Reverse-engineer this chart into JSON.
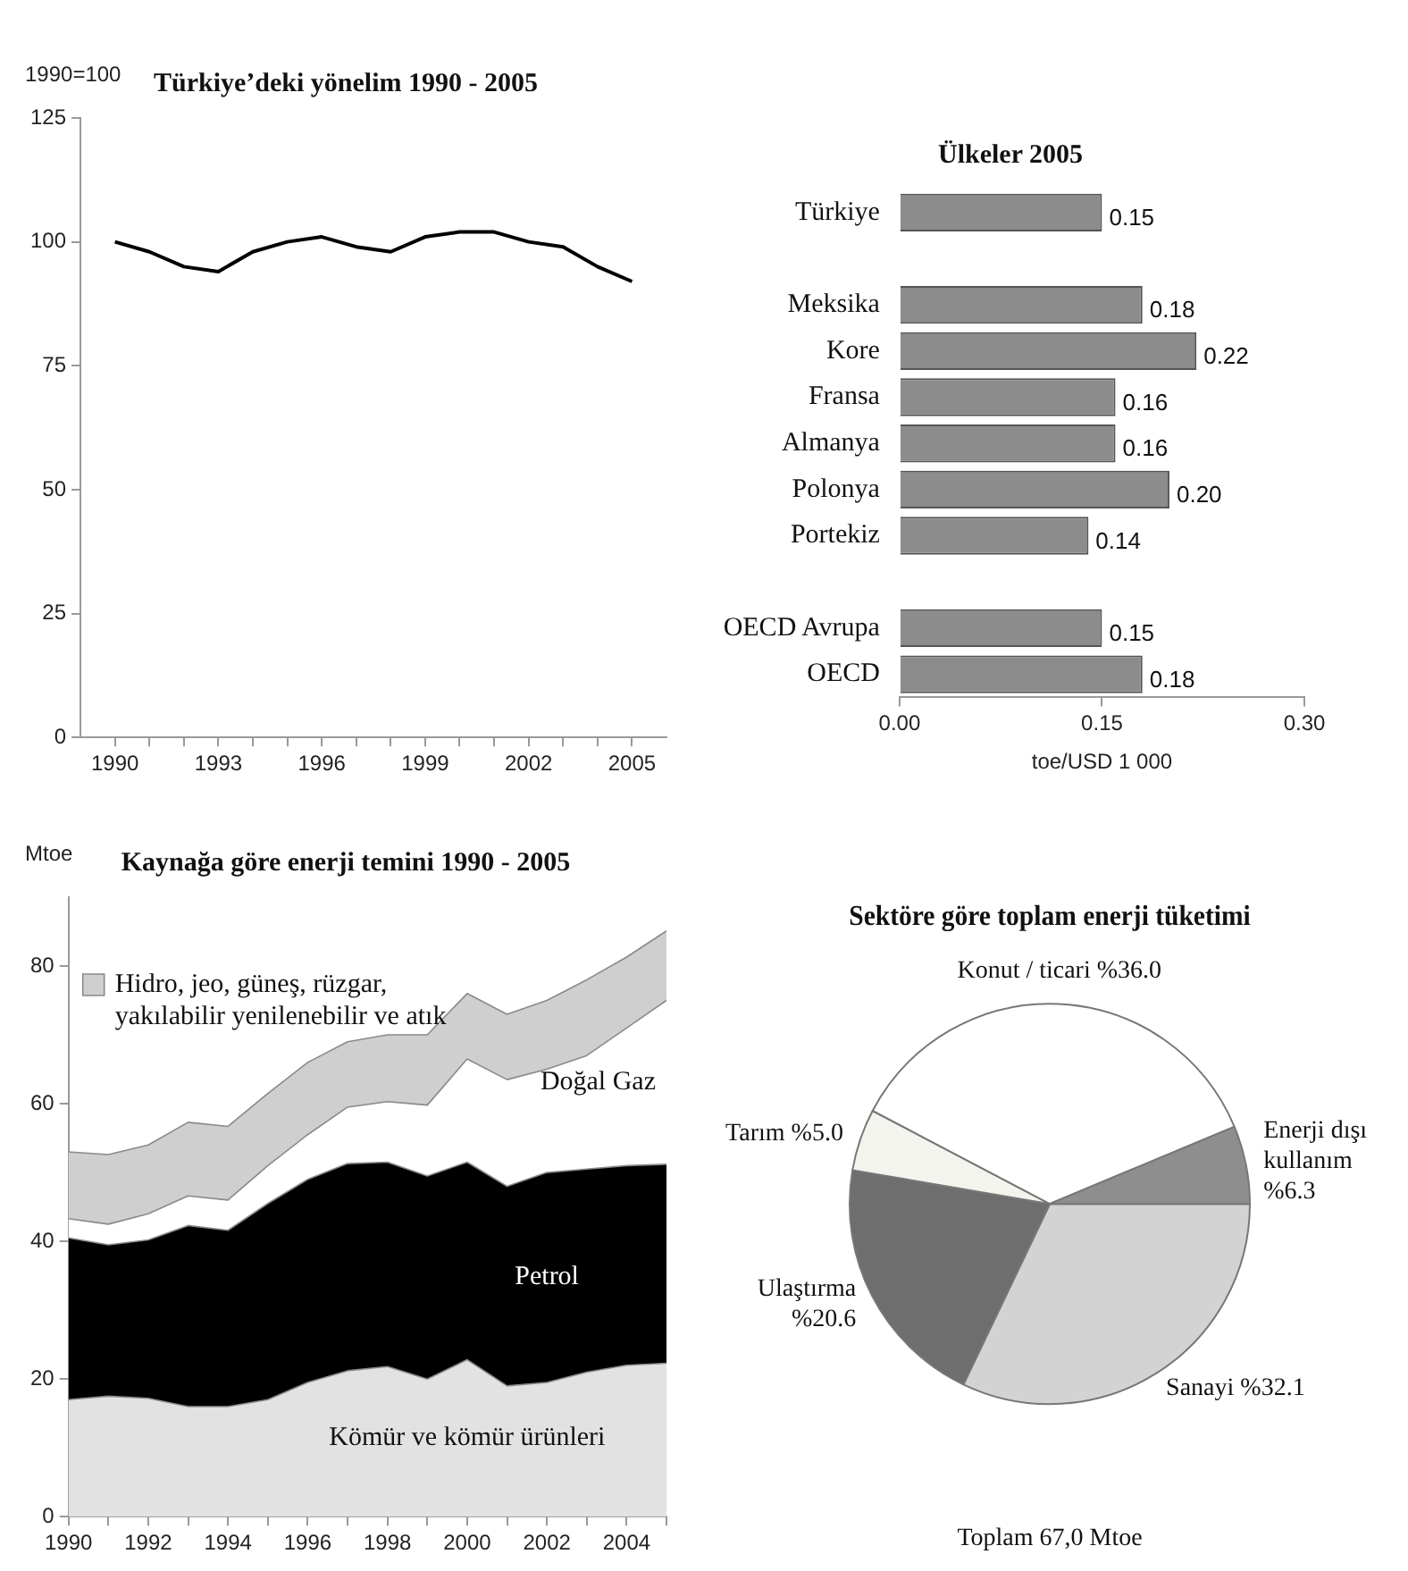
{
  "chart_data": [
    {
      "type": "line",
      "title": "Türkiye’deki yönelim 1990 - 2005",
      "ylabel": "1990=100",
      "x": [
        1990,
        1991,
        1992,
        1993,
        1994,
        1995,
        1996,
        1997,
        1998,
        1999,
        2000,
        2001,
        2002,
        2003,
        2004,
        2005
      ],
      "series": [
        {
          "color": "#000000",
          "values": [
            100,
            98,
            95,
            94,
            98,
            100,
            101,
            99,
            98,
            101,
            102,
            102,
            100,
            99,
            95,
            92
          ]
        }
      ],
      "xlim": [
        1989,
        2006
      ],
      "xticks": [
        1990,
        {
          "value": 1991,
          "label": null
        },
        {
          "value": 1992,
          "label": null
        },
        1993,
        {
          "value": 1994,
          "label": null
        },
        {
          "value": 1995,
          "label": null
        },
        1996,
        {
          "value": 1997,
          "label": null
        },
        {
          "value": 1998,
          "label": null
        },
        1999,
        {
          "value": 2000,
          "label": null
        },
        {
          "value": 2001,
          "label": null
        },
        2002,
        {
          "value": 2003,
          "label": null
        },
        {
          "value": 2004,
          "label": null
        },
        2005
      ],
      "ylim": [
        0,
        125
      ],
      "yticks": [
        0,
        25,
        50,
        75,
        100,
        125
      ]
    },
    {
      "type": "bar",
      "orientation": "horizontal",
      "title": "Ülkeler 2005",
      "xlabel": "toe/USD 1 000",
      "categories": [
        "Türkiye",
        null,
        "Meksika",
        "Kore",
        "Fransa",
        "Almanya",
        "Polonya",
        "Portekiz",
        null,
        "OECD Avrupa",
        "OECD"
      ],
      "values": [
        0.15,
        null,
        0.18,
        0.22,
        0.16,
        0.16,
        0.2,
        0.14,
        null,
        0.15,
        0.18
      ],
      "value_labels": [
        "0.15",
        null,
        "0.18",
        "0.22",
        "0.16",
        "0.16",
        "0.20",
        "0.14",
        null,
        "0.15",
        "0.18"
      ],
      "color": "#8c8c8c",
      "xlim": [
        0,
        0.3
      ],
      "xticks": [
        {
          "value": 0,
          "label": "0.00"
        },
        0.15,
        {
          "value": 0.3,
          "label": "0.30"
        }
      ]
    },
    {
      "type": "area",
      "stacked": true,
      "title": "Kaynağa göre enerji temini 1990 - 2005",
      "ylabel": "Mtoe",
      "x": [
        1990,
        1991,
        1992,
        1993,
        1994,
        1995,
        1996,
        1997,
        1998,
        1999,
        2000,
        2001,
        2002,
        2003,
        2004,
        2005
      ],
      "series": [
        {
          "name": "Kömür ve kömür ürünleri",
          "color": "#e2e2e2",
          "values": [
            17,
            17.5,
            17.2,
            16,
            16,
            17,
            19.5,
            21.2,
            21.8,
            20,
            22.8,
            19,
            19.5,
            21,
            22,
            22.3
          ]
        },
        {
          "name": "Petrol",
          "color": "#000000",
          "values": [
            23.5,
            22,
            23,
            26.3,
            25.6,
            28.5,
            29.5,
            30.1,
            29.7,
            29.5,
            28.7,
            29,
            30.5,
            29.5,
            29,
            28.9
          ]
        },
        {
          "name": "Doğal Gaz",
          "color": "#ffffff",
          "values": [
            2.8,
            3,
            3.8,
            4.3,
            4.4,
            5.5,
            6.5,
            8.2,
            8.8,
            10.3,
            15,
            15.5,
            15,
            16.5,
            20,
            23.8
          ]
        },
        {
          "name": "Hidro, jeo, güneş, rüzgar, yakılabilir yenilenebilir ve atık",
          "color": "#cfcfcf",
          "values": [
            9.7,
            10.1,
            10,
            10.7,
            10.7,
            10.5,
            10.5,
            9.5,
            9.7,
            10.2,
            9.5,
            9.5,
            10,
            11,
            10.3,
            10.1
          ]
        }
      ],
      "xlim": [
        1990,
        2005
      ],
      "xticks": [
        1990,
        {
          "value": 1991,
          "label": null
        },
        1992,
        {
          "value": 1993,
          "label": null
        },
        1994,
        {
          "value": 1995,
          "label": null
        },
        1996,
        {
          "value": 1997,
          "label": null
        },
        1998,
        {
          "value": 1999,
          "label": null
        },
        2000,
        {
          "value": 2001,
          "label": null
        },
        2002,
        {
          "value": 2003,
          "label": null
        },
        2004,
        {
          "value": 2005,
          "label": null
        }
      ],
      "ylim": [
        0,
        90
      ],
      "yticks": [
        0,
        20,
        40,
        60,
        80
      ]
    },
    {
      "type": "pie",
      "title": "Sektöre göre toplam enerji tüketimi",
      "categories": [
        "Sanayi",
        "Ulaştırma",
        "Tarım",
        "Konut / ticari",
        "Enerji dışı kullanım"
      ],
      "values": [
        32.1,
        20.6,
        5.0,
        36.0,
        6.3
      ],
      "value_labels": [
        "%32.1",
        "%20.6",
        "%5.0",
        "%36.0",
        "%6.3"
      ],
      "colors": [
        "#d3d3d3",
        "#6e6e6e",
        "#f4f4ee",
        "#ffffff",
        "#8e8e8e"
      ],
      "annotations": [
        "Toplam 67,0 Mtoe"
      ]
    }
  ]
}
